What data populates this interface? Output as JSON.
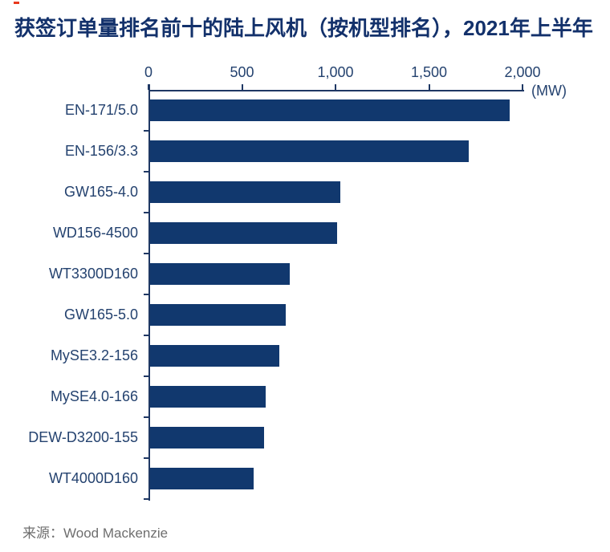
{
  "title": "获签订单量排名前十的陆上风机（按机型排名），2021年上半年",
  "source": {
    "text": "来源：Wood Mackenzie"
  },
  "colors": {
    "bar": "#11386E",
    "title": "#13316B",
    "axis_text": "#24426F",
    "axis_line": "#1F3864",
    "source_text": "#6E6E6E",
    "accent_mark": "#E8391D"
  },
  "chart_data": {
    "type": "bar",
    "orientation": "horizontal",
    "title": "获签订单量排名前十的陆上风机（按机型排名），2021年上半年",
    "unit_label": "(MW)",
    "categories": [
      "EN-171/5.0",
      "EN-156/3.3",
      "GW165-4.0",
      "WD156-4500",
      "WT3300D160",
      "GW165-5.0",
      "MySE3.2-156",
      "MySE4.0-166",
      "DEW-D3200-155",
      "WT4000D160"
    ],
    "values": [
      1930,
      1710,
      1020,
      1005,
      750,
      730,
      695,
      620,
      610,
      555
    ],
    "ylabel": "",
    "xlabel": "(MW)",
    "xlim": [
      0,
      2000
    ],
    "xticks": [
      0,
      500,
      1000,
      1500,
      2000
    ],
    "xtick_labels": [
      "0",
      "500",
      "1,000",
      "1,500",
      "2,000"
    ],
    "grid": false,
    "legend": null,
    "tick_position": "top"
  }
}
